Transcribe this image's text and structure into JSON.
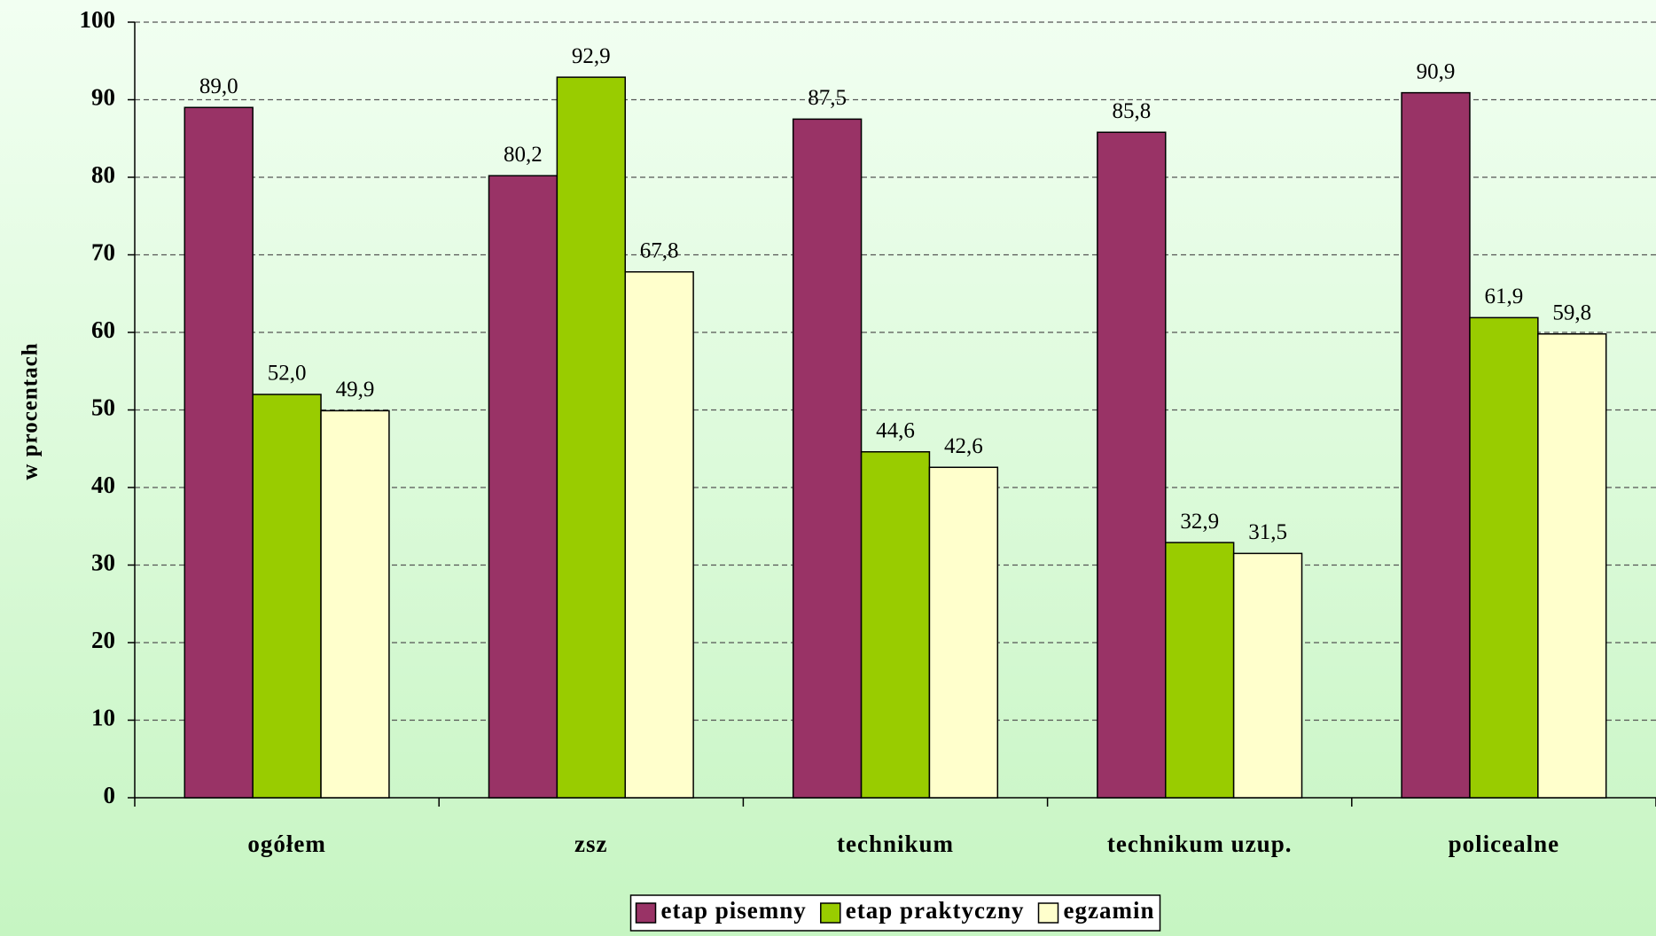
{
  "chart_data": {
    "type": "bar",
    "y_label": "w procentach",
    "categories": [
      "ogółem",
      "zsz",
      "technikum",
      "technikum uzup.",
      "policealne"
    ],
    "series": [
      {
        "name": "etap pisemny",
        "color": "#993366",
        "values": [
          89.0,
          80.2,
          87.5,
          85.8,
          90.9
        ],
        "value_labels": [
          "89,0",
          "80,2",
          "87,5",
          "85,8",
          "90,9"
        ]
      },
      {
        "name": "etap praktyczny",
        "color": "#99cc00",
        "values": [
          52.0,
          92.9,
          44.6,
          32.9,
          61.9
        ],
        "value_labels": [
          "52,0",
          "92,9",
          "44,6",
          "32,9",
          "61,9"
        ]
      },
      {
        "name": "egzamin",
        "color": "#ffffcc",
        "values": [
          49.9,
          67.8,
          42.6,
          31.5,
          59.8
        ],
        "value_labels": [
          "49,9",
          "67,8",
          "42,6",
          "31,5",
          "59,8"
        ]
      }
    ],
    "ylim": [
      0,
      100
    ],
    "yticks": [
      0,
      10,
      20,
      30,
      40,
      50,
      60,
      70,
      80,
      90,
      100
    ],
    "grid": true,
    "legend": "bottom"
  }
}
